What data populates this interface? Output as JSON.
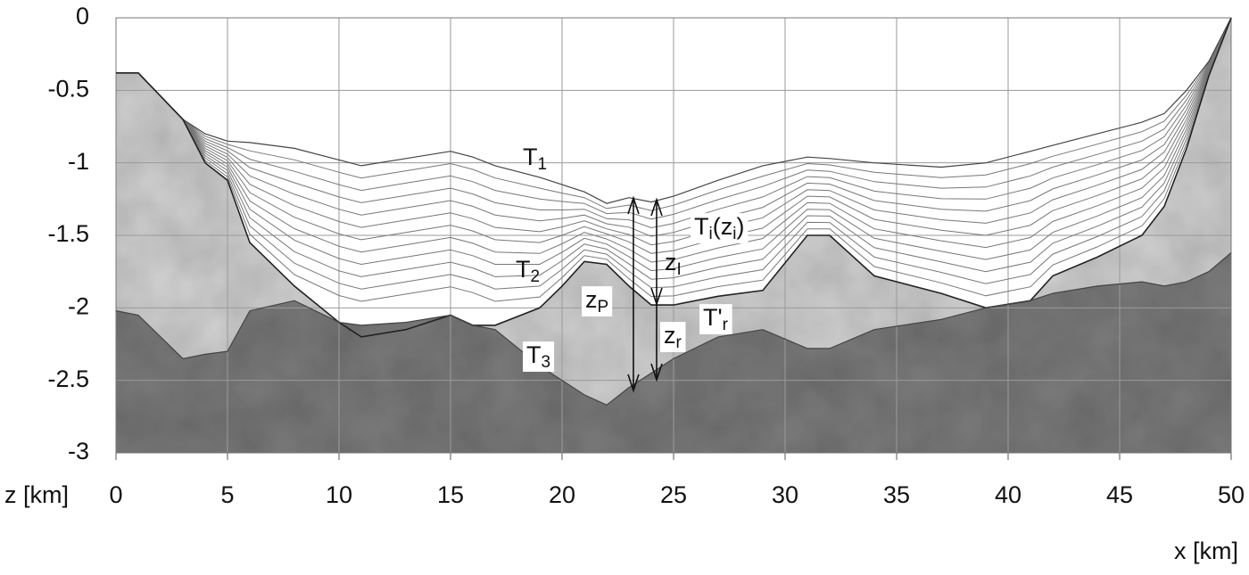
{
  "chart_data": {
    "type": "area",
    "x": [
      0,
      1,
      3,
      4,
      5,
      6,
      8,
      10,
      11,
      13,
      15,
      16,
      17,
      19,
      20,
      21,
      22,
      23,
      24,
      25,
      27,
      29,
      31,
      32,
      34,
      37,
      39,
      41,
      42,
      44,
      46,
      47,
      48,
      49,
      50
    ],
    "series": [
      {
        "color": "#ffffff",
        "values": [
          -0.38,
          -0.38,
          -0.7,
          -0.8,
          -0.85,
          -0.86,
          -0.9,
          -0.98,
          -1.02,
          -0.97,
          -0.92,
          -0.96,
          -1.02,
          -1.1,
          -1.15,
          -1.2,
          -1.28,
          -1.24,
          -1.27,
          -1.23,
          -1.12,
          -1.02,
          -0.96,
          -0.97,
          -1.0,
          -1.03,
          -1.0,
          -0.92,
          -0.88,
          -0.8,
          -0.72,
          -0.66,
          -0.5,
          -0.3,
          0
        ]
      },
      {
        "color": "#d2d2d2",
        "values": [
          -0.38,
          -0.38,
          -0.7,
          -1.0,
          -1.12,
          -1.55,
          -1.85,
          -2.1,
          -2.2,
          -2.15,
          -2.05,
          -2.12,
          -2.12,
          -2.0,
          -1.85,
          -1.68,
          -1.7,
          -1.85,
          -1.98,
          -1.98,
          -1.92,
          -1.88,
          -1.5,
          -1.5,
          -1.78,
          -1.9,
          -2.0,
          -1.95,
          -1.78,
          -1.65,
          -1.5,
          -1.3,
          -0.9,
          -0.4,
          0
        ]
      },
      {
        "color": "#7c7c7c",
        "values": [
          -2.02,
          -2.05,
          -2.35,
          -2.32,
          -2.3,
          -2.02,
          -1.95,
          -2.1,
          -2.12,
          -2.1,
          -2.05,
          -2.12,
          -2.15,
          -2.4,
          -2.5,
          -2.6,
          -2.67,
          -2.55,
          -2.45,
          -2.35,
          -2.2,
          -2.15,
          -2.28,
          -2.28,
          -2.15,
          -2.08,
          -2.0,
          -1.95,
          -1.9,
          -1.85,
          -1.82,
          -1.85,
          -1.82,
          -1.75,
          -1.62
        ]
      }
    ],
    "xlim": [
      0,
      50
    ],
    "ylim": [
      -3,
      0
    ],
    "xticks": [
      0,
      5,
      10,
      15,
      20,
      25,
      30,
      35,
      40,
      45,
      50
    ],
    "yticks": [
      0,
      -0.5,
      -1,
      -1.5,
      -2,
      -2.5,
      -3
    ],
    "grid": true,
    "xlabel": "x [km]",
    "ylabel": "z [km]",
    "annotations": [
      [
        "T",
        "1"
      ],
      [
        "T",
        "i",
        "(z",
        "i",
        ")"
      ],
      [
        "T",
        "2"
      ],
      [
        "z",
        "P"
      ],
      [
        "z",
        "I"
      ],
      [
        "z",
        "r"
      ],
      [
        "T'",
        "r"
      ],
      [
        "T",
        "3"
      ]
    ]
  }
}
